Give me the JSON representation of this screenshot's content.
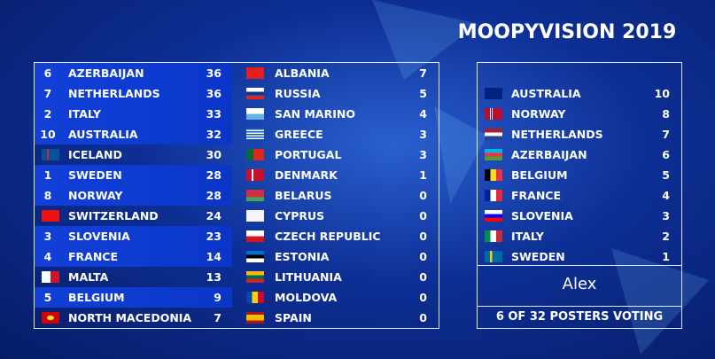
{
  "header": {
    "title": "MOOPYVISION 2019"
  },
  "scoreboard": {
    "left": [
      {
        "received": 6,
        "country": "AZERBAIJAN",
        "total": 36
      },
      {
        "received": 7,
        "country": "NETHERLANDS",
        "total": 36
      },
      {
        "received": 2,
        "country": "ITALY",
        "total": 33
      },
      {
        "received": 10,
        "country": "AUSTRALIA",
        "total": 32
      },
      {
        "country": "ICELAND",
        "total": 30
      },
      {
        "received": 1,
        "country": "SWEDEN",
        "total": 28
      },
      {
        "received": 8,
        "country": "NORWAY",
        "total": 28
      },
      {
        "country": "SWITZERLAND",
        "total": 24
      },
      {
        "received": 3,
        "country": "SLOVENIA",
        "total": 23
      },
      {
        "received": 4,
        "country": "FRANCE",
        "total": 14
      },
      {
        "country": "MALTA",
        "total": 13
      },
      {
        "received": 5,
        "country": "BELGIUM",
        "total": 9
      },
      {
        "country": "NORTH MACEDONIA",
        "total": 7
      }
    ],
    "right": [
      {
        "country": "ALBANIA",
        "total": 7
      },
      {
        "country": "RUSSIA",
        "total": 5
      },
      {
        "country": "SAN MARINO",
        "total": 4
      },
      {
        "country": "GREECE",
        "total": 3
      },
      {
        "country": "PORTUGAL",
        "total": 3
      },
      {
        "country": "DENMARK",
        "total": 1
      },
      {
        "country": "BELARUS",
        "total": 0
      },
      {
        "country": "CYPRUS",
        "total": 0
      },
      {
        "country": "CZECH REPUBLIC",
        "total": 0
      },
      {
        "country": "ESTONIA",
        "total": 0
      },
      {
        "country": "LITHUANIA",
        "total": 0
      },
      {
        "country": "MOLDOVA",
        "total": 0
      },
      {
        "country": "SPAIN",
        "total": 0
      }
    ]
  },
  "voting": {
    "rows": [
      {
        "country": "AUSTRALIA",
        "points": 10
      },
      {
        "country": "NORWAY",
        "points": 8
      },
      {
        "country": "NETHERLANDS",
        "points": 7
      },
      {
        "country": "AZERBAIJAN",
        "points": 6
      },
      {
        "country": "BELGIUM",
        "points": 5
      },
      {
        "country": "FRANCE",
        "points": 4
      },
      {
        "country": "SLOVENIA",
        "points": 3
      },
      {
        "country": "ITALY",
        "points": 2
      },
      {
        "country": "SWEDEN",
        "points": 1
      }
    ],
    "voter": "Alex",
    "footer": "6 OF 32 POSTERS VOTING"
  }
}
